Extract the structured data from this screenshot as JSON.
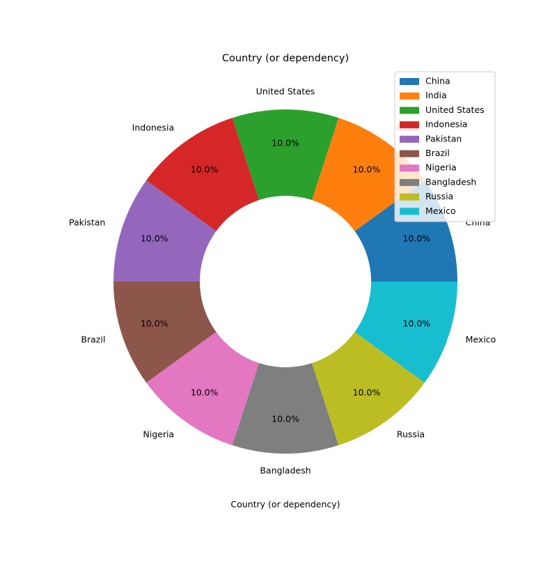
{
  "chart_data": {
    "type": "pie",
    "donut": true,
    "title": "Country (or dependency)",
    "xlabel": "Country (or dependency)",
    "legend_placement": "top-right",
    "categories": [
      "China",
      "India",
      "United States",
      "Indonesia",
      "Pakistan",
      "Brazil",
      "Nigeria",
      "Bangladesh",
      "Russia",
      "Mexico"
    ],
    "values": [
      1,
      1,
      1,
      1,
      1,
      1,
      1,
      1,
      1,
      1
    ],
    "percent_labels": [
      "10.0%",
      "10.0%",
      "10.0%",
      "10.0%",
      "10.0%",
      "10.0%",
      "10.0%",
      "10.0%",
      "10.0%",
      "10.0%"
    ],
    "colors": [
      "#1f77b4",
      "#ff7f0e",
      "#2ca02c",
      "#d62728",
      "#9467bd",
      "#8c564b",
      "#e377c2",
      "#7f7f7f",
      "#bcbd22",
      "#17becf"
    ]
  }
}
